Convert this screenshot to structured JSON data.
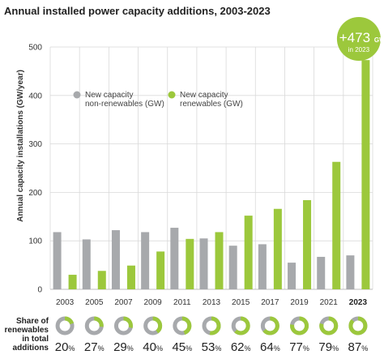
{
  "chart_data": {
    "type": "bar",
    "title": "Annual installed power capacity additions, 2003-2023",
    "ylabel": "Annual capacity installations (GW/year)",
    "xlabel": "",
    "ylim": [
      0,
      500
    ],
    "yticks": [
      0,
      100,
      200,
      300,
      400,
      500
    ],
    "categories": [
      "2003",
      "2005",
      "2007",
      "2009",
      "2011",
      "2013",
      "2015",
      "2017",
      "2019",
      "2021",
      "2023"
    ],
    "series": [
      {
        "name": "New capacity non-renewables (GW)",
        "legend_lines": [
          "New capacity",
          "non-renewables (GW)"
        ],
        "color": "#a7a9ac",
        "values": [
          118,
          103,
          122,
          118,
          127,
          105,
          90,
          93,
          55,
          67,
          70
        ]
      },
      {
        "name": "New capacity renewables (GW)",
        "legend_lines": [
          "New capacity",
          "renewables (GW)"
        ],
        "color": "#9cc83c",
        "values": [
          30,
          38,
          49,
          78,
          104,
          118,
          152,
          166,
          184,
          263,
          473
        ]
      }
    ],
    "grid": true,
    "legend_position": "top-left",
    "callout": {
      "big": "+473",
      "unit": "GW",
      "sub": "in 2023"
    },
    "share": {
      "label_lines": [
        "Share of",
        "renewables",
        "in total",
        "additions"
      ],
      "values": [
        20,
        27,
        29,
        40,
        45,
        53,
        62,
        64,
        77,
        79,
        87
      ],
      "pct_symbol": "%"
    },
    "highlight_category": "2023"
  }
}
